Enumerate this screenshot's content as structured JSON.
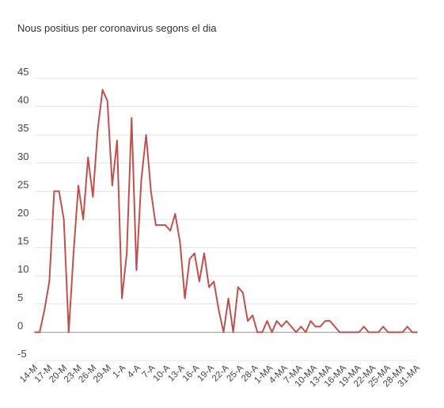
{
  "chart_data": {
    "type": "line",
    "title": "Nous positius per coronavirus segons el dia",
    "xlabel": "",
    "ylabel": "",
    "ylim": [
      -5,
      45
    ],
    "yticks": [
      -5,
      0,
      5,
      10,
      15,
      20,
      25,
      30,
      35,
      40,
      45
    ],
    "grid": true,
    "legend": "none",
    "line_color": "#c0504d",
    "x_tick_labels": [
      "14-M",
      "17-M",
      "20-M",
      "23-M",
      "26-M",
      "29-M",
      "1-A",
      "4-A",
      "7-A",
      "10-A",
      "13-A",
      "16-A",
      "19-A",
      "22-A",
      "25-A",
      "28-A",
      "1-MA",
      "4-MA",
      "7-MA",
      "10-MA",
      "13-MA",
      "16-MA",
      "19-MA",
      "22-MA",
      "25-MA",
      "28-MA",
      "31-MA"
    ],
    "series": [
      {
        "values": [
          0,
          0,
          4,
          9,
          25,
          25,
          20,
          0,
          14,
          26,
          20,
          31,
          24,
          36,
          43,
          41,
          26,
          34,
          6,
          14,
          38,
          11,
          27,
          35,
          25,
          19,
          19,
          19,
          18,
          21,
          16,
          6,
          13,
          14,
          9,
          14,
          8,
          9,
          4,
          0,
          6,
          0,
          8,
          7,
          2,
          3,
          0,
          0,
          2,
          0,
          2,
          1,
          2,
          1,
          0,
          1,
          0,
          2,
          1,
          1,
          2,
          2,
          1,
          0,
          0,
          0,
          0,
          0,
          1,
          0,
          0,
          0,
          1,
          0,
          0,
          0,
          0,
          1,
          0,
          0
        ]
      }
    ]
  }
}
